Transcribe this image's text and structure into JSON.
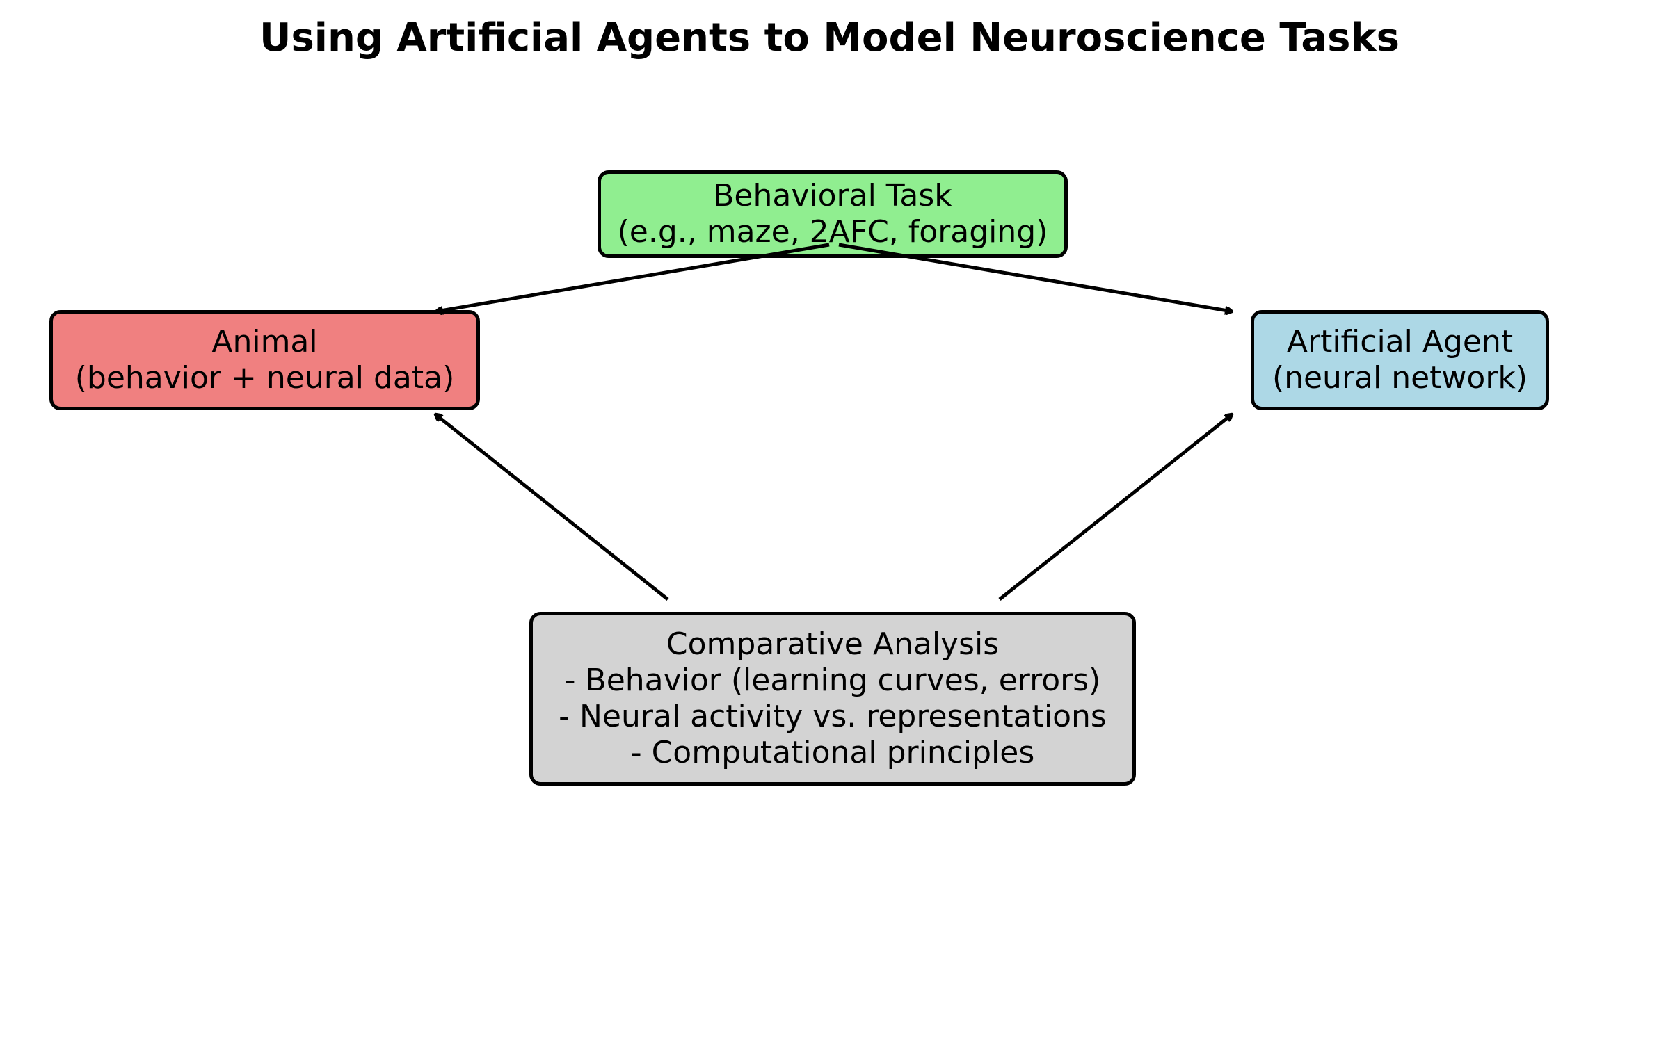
{
  "title": "Using Artificial Agents to Model Neuroscience Tasks",
  "nodes": {
    "task": {
      "lines": [
        "Behavioral Task",
        "(e.g., maze, 2AFC, foraging)"
      ],
      "color": "#90ee90"
    },
    "animal": {
      "lines": [
        "Animal",
        "(behavior + neural data)"
      ],
      "color": "#f08080"
    },
    "agent": {
      "lines": [
        "Artificial Agent",
        "(neural network)"
      ],
      "color": "#add8e6"
    },
    "analysis": {
      "lines": [
        "Comparative Analysis",
        "- Behavior (learning curves, errors)",
        "- Neural activity vs. representations",
        "- Computational principles"
      ],
      "color": "#d3d3d3"
    }
  },
  "edges": [
    {
      "from": "task",
      "to": "animal"
    },
    {
      "from": "task",
      "to": "agent"
    },
    {
      "from": "analysis",
      "to": "animal"
    },
    {
      "from": "analysis",
      "to": "agent"
    }
  ],
  "style": {
    "line_color": "#000000"
  }
}
